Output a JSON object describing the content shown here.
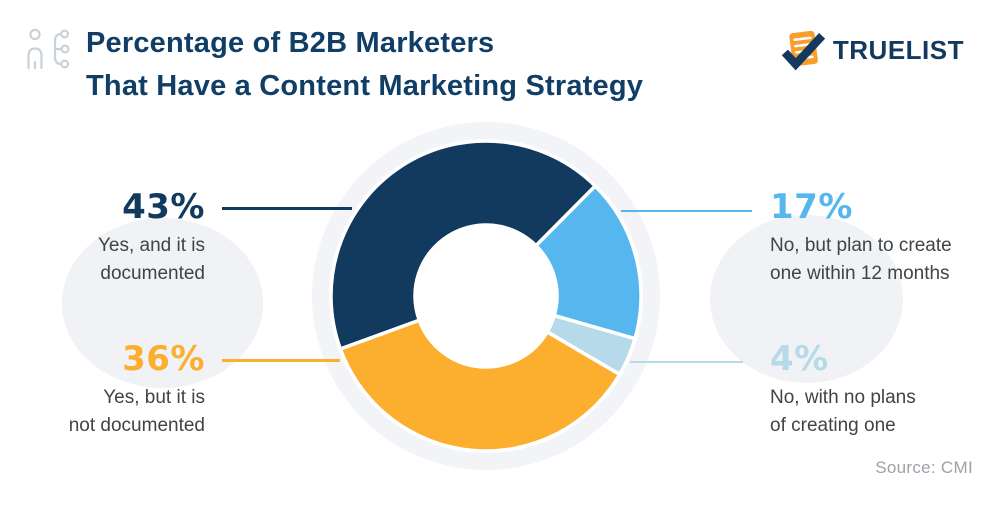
{
  "header": {
    "title_line1": "Percentage of B2B Marketers",
    "title_line2": "That Have a Content Marketing Strategy",
    "logo_text": "TRUELIST"
  },
  "source_text": "Source: CMI",
  "colors": {
    "title": "#113E66",
    "logo_navy": "#14395E",
    "logo_orange": "#F79E2D",
    "desc_text": "#3F4447",
    "source_text": "#9BA2A8",
    "ring_bg": "#F2F4F7",
    "blob_bg": "#F0F2F5",
    "header_icon": "#C9D1D9",
    "segment_gap": "#FFFFFF"
  },
  "chart_data": {
    "type": "pie",
    "donut": true,
    "title": "Percentage of B2B Marketers That Have a Content Marketing Strategy",
    "source": "Source: CMI",
    "start_angle_deg": 250,
    "legend_position": "callouts-left-right",
    "segments": [
      {
        "value": 43,
        "pct_label": "43%",
        "desc_line1": "Yes, and it is",
        "desc_line2": "documented",
        "label": "Yes, and it is documented",
        "color": "#113A5E"
      },
      {
        "value": 17,
        "pct_label": "17%",
        "desc_line1": "No, but plan to create",
        "desc_line2": "one within 12 months",
        "label": "No, but plan to create one within 12 months",
        "color": "#56B7EE"
      },
      {
        "value": 4,
        "pct_label": "4%",
        "desc_line1": "No, with no plans",
        "desc_line2": "of creating one",
        "label": "No, with no plans of creating one",
        "color": "#B6DAEA"
      },
      {
        "value": 36,
        "pct_label": "36%",
        "desc_line1": "Yes, but it is",
        "desc_line2": "not documented",
        "label": "Yes, but it is not documented",
        "color": "#FCAE2E"
      }
    ]
  }
}
